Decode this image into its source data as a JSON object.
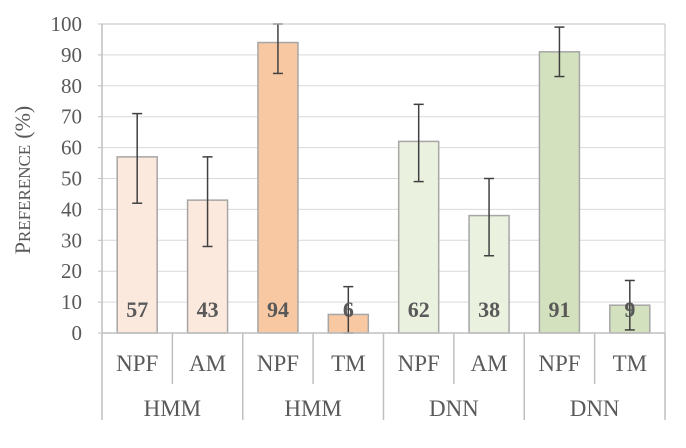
{
  "chart_data": {
    "type": "bar",
    "ylabel_first": "P",
    "ylabel_rest": "REFERENCE",
    "ylabel_unit": "(%)",
    "ylim": [
      0,
      100
    ],
    "yticks": [
      "0",
      "10",
      "20",
      "30",
      "40",
      "50",
      "60",
      "70",
      "80",
      "90",
      "100"
    ],
    "grid": true,
    "categories": [
      "NPF",
      "AM",
      "NPF",
      "TM",
      "NPF",
      "AM",
      "NPF",
      "TM"
    ],
    "groups": [
      "HMM",
      "HMM",
      "DNN",
      "DNN"
    ],
    "values": [
      57,
      43,
      94,
      6,
      62,
      38,
      91,
      9
    ],
    "value_labels": [
      "57",
      "43",
      "94",
      "6",
      "62",
      "38",
      "91",
      "9"
    ],
    "error_low": [
      42,
      28,
      84,
      0,
      49,
      25,
      83,
      1
    ],
    "error_high": [
      71,
      57,
      100,
      15,
      74,
      50,
      99,
      17
    ],
    "colors": [
      "#FCE9DE",
      "#FCE9DE",
      "#F8C8A2",
      "#F8C8A2",
      "#EBF1DF",
      "#EBF1DF",
      "#D3E1BE",
      "#D3E1BE"
    ],
    "bar_edge_color": "#A6A6A6",
    "grid_color": "#D9D9D9",
    "axis_color": "#BFBFBF",
    "text_color": "#595959"
  }
}
